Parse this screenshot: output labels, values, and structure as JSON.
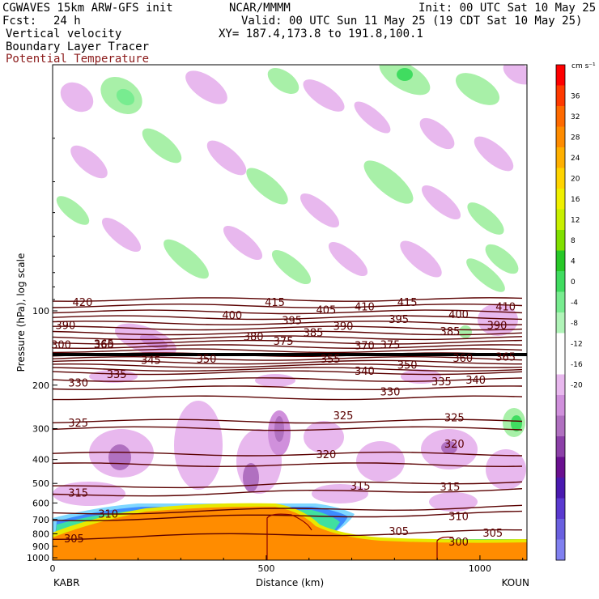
{
  "header": {
    "line1_left": "CGWAVES 15km ARW-GFS init",
    "line1_mid": "NCAR/MMMM",
    "line1_right": "Init: 00 UTC Sat 10 May 25",
    "fcst_label": "Fcst:",
    "fcst_value": "24 h",
    "valid": "Valid: 00 UTC Sun 11 May 25 (19 CDT Sat 10 May 25)",
    "xy": "XY= 187.4,173.8 to 191.8,100.1",
    "field1": "Vertical velocity",
    "field2": "Boundary Layer Tracer",
    "field3": "Potential Temperature"
  },
  "colors": {
    "theta_contour": "#5a0000",
    "terrain": "#ff8c00",
    "terrain_edge": "#e8e800",
    "updraft_weak": "#a8f0a8",
    "downdraft_weak": "#e8b8ee",
    "downdraft_mod": "#b070c0"
  },
  "chart_data": {
    "type": "heatmap",
    "title": "",
    "ylabel": "Pressure (hPa), log scale",
    "xlabel": "Distance (km)",
    "x_ticks": [
      "0",
      "500",
      "1000"
    ],
    "x_tick_values": [
      0,
      500,
      1000
    ],
    "xlim": [
      0,
      1110
    ],
    "y_ticks": [
      "100",
      "200",
      "300",
      "400",
      "500",
      "600",
      "700",
      "800",
      "900",
      "1000"
    ],
    "y_tick_values": [
      100,
      200,
      300,
      400,
      500,
      600,
      700,
      800,
      900,
      1000
    ],
    "endpoints": {
      "left": "KABR",
      "right": "KOUN"
    },
    "colorbar": {
      "units": "cm s⁻¹",
      "labels": [
        "36",
        "32",
        "28",
        "24",
        "20",
        "16",
        "12",
        "8",
        "4",
        "0",
        "-4",
        "-8",
        "-12",
        "-16",
        "-20"
      ],
      "colors": [
        "#ff0000",
        "#ff3a00",
        "#ff6a00",
        "#ff8c00",
        "#ffb000",
        "#ffd400",
        "#f0f000",
        "#c8f000",
        "#80e000",
        "#28c828",
        "#40dc60",
        "#78ec90",
        "#b0f4b8",
        "#ffffff",
        "#ffffff",
        "#e8b8ee",
        "#d090dc",
        "#b070c0",
        "#8c40a8",
        "#6a1090",
        "#4a1ab0",
        "#5a3ad0",
        "#6a60e0",
        "#8080f0"
      ]
    },
    "theta_contour_labels": [
      {
        "value": "420",
        "x_km": 70,
        "p": 92
      },
      {
        "value": "415",
        "x_km": 520,
        "p": 92
      },
      {
        "value": "415",
        "x_km": 830,
        "p": 92
      },
      {
        "value": "410",
        "x_km": 730,
        "p": 96
      },
      {
        "value": "410",
        "x_km": 1060,
        "p": 96
      },
      {
        "value": "405",
        "x_km": 640,
        "p": 99
      },
      {
        "value": "400",
        "x_km": 420,
        "p": 104
      },
      {
        "value": "400",
        "x_km": 950,
        "p": 103
      },
      {
        "value": "395",
        "x_km": 560,
        "p": 109
      },
      {
        "value": "395",
        "x_km": 810,
        "p": 108
      },
      {
        "value": "390",
        "x_km": 30,
        "p": 114
      },
      {
        "value": "390",
        "x_km": 680,
        "p": 115
      },
      {
        "value": "390",
        "x_km": 1040,
        "p": 114
      },
      {
        "value": "385",
        "x_km": 610,
        "p": 122
      },
      {
        "value": "385",
        "x_km": 930,
        "p": 121
      },
      {
        "value": "380",
        "x_km": 470,
        "p": 127
      },
      {
        "value": "375",
        "x_km": 540,
        "p": 132
      },
      {
        "value": "375",
        "x_km": 790,
        "p": 137
      },
      {
        "value": "370",
        "x_km": 730,
        "p": 138
      },
      {
        "value": "365",
        "x_km": 120,
        "p": 136
      },
      {
        "value": "360",
        "x_km": 120,
        "p": 137
      },
      {
        "value": "360",
        "x_km": 960,
        "p": 155
      },
      {
        "value": "365",
        "x_km": 1060,
        "p": 153
      },
      {
        "value": "355",
        "x_km": 650,
        "p": 156
      },
      {
        "value": "350",
        "x_km": 360,
        "p": 156
      },
      {
        "value": "350",
        "x_km": 830,
        "p": 165
      },
      {
        "value": "345",
        "x_km": 230,
        "p": 158
      },
      {
        "value": "340",
        "x_km": 730,
        "p": 175
      },
      {
        "value": "340",
        "x_km": 990,
        "p": 190
      },
      {
        "value": "335",
        "x_km": 150,
        "p": 180
      },
      {
        "value": "335",
        "x_km": 910,
        "p": 193
      },
      {
        "value": "330",
        "x_km": 60,
        "p": 195
      },
      {
        "value": "330",
        "x_km": 790,
        "p": 212
      },
      {
        "value": "325",
        "x_km": 60,
        "p": 283
      },
      {
        "value": "325",
        "x_km": 680,
        "p": 265
      },
      {
        "value": "325",
        "x_km": 940,
        "p": 270
      },
      {
        "value": "320",
        "x_km": 640,
        "p": 380
      },
      {
        "value": "320",
        "x_km": 940,
        "p": 345
      },
      {
        "value": "315",
        "x_km": 60,
        "p": 545
      },
      {
        "value": "315",
        "x_km": 720,
        "p": 510
      },
      {
        "value": "315",
        "x_km": 930,
        "p": 515
      },
      {
        "value": "310",
        "x_km": 130,
        "p": 662
      },
      {
        "value": "310",
        "x_km": 950,
        "p": 678
      },
      {
        "value": "305",
        "x_km": 50,
        "p": 835
      },
      {
        "value": "305",
        "x_km": 810,
        "p": 780
      },
      {
        "value": "305",
        "x_km": 1030,
        "p": 790
      },
      {
        "value": "300",
        "x_km": 950,
        "p": 860
      },
      {
        "value": "300",
        "x_km": 20,
        "p": 137
      }
    ]
  }
}
